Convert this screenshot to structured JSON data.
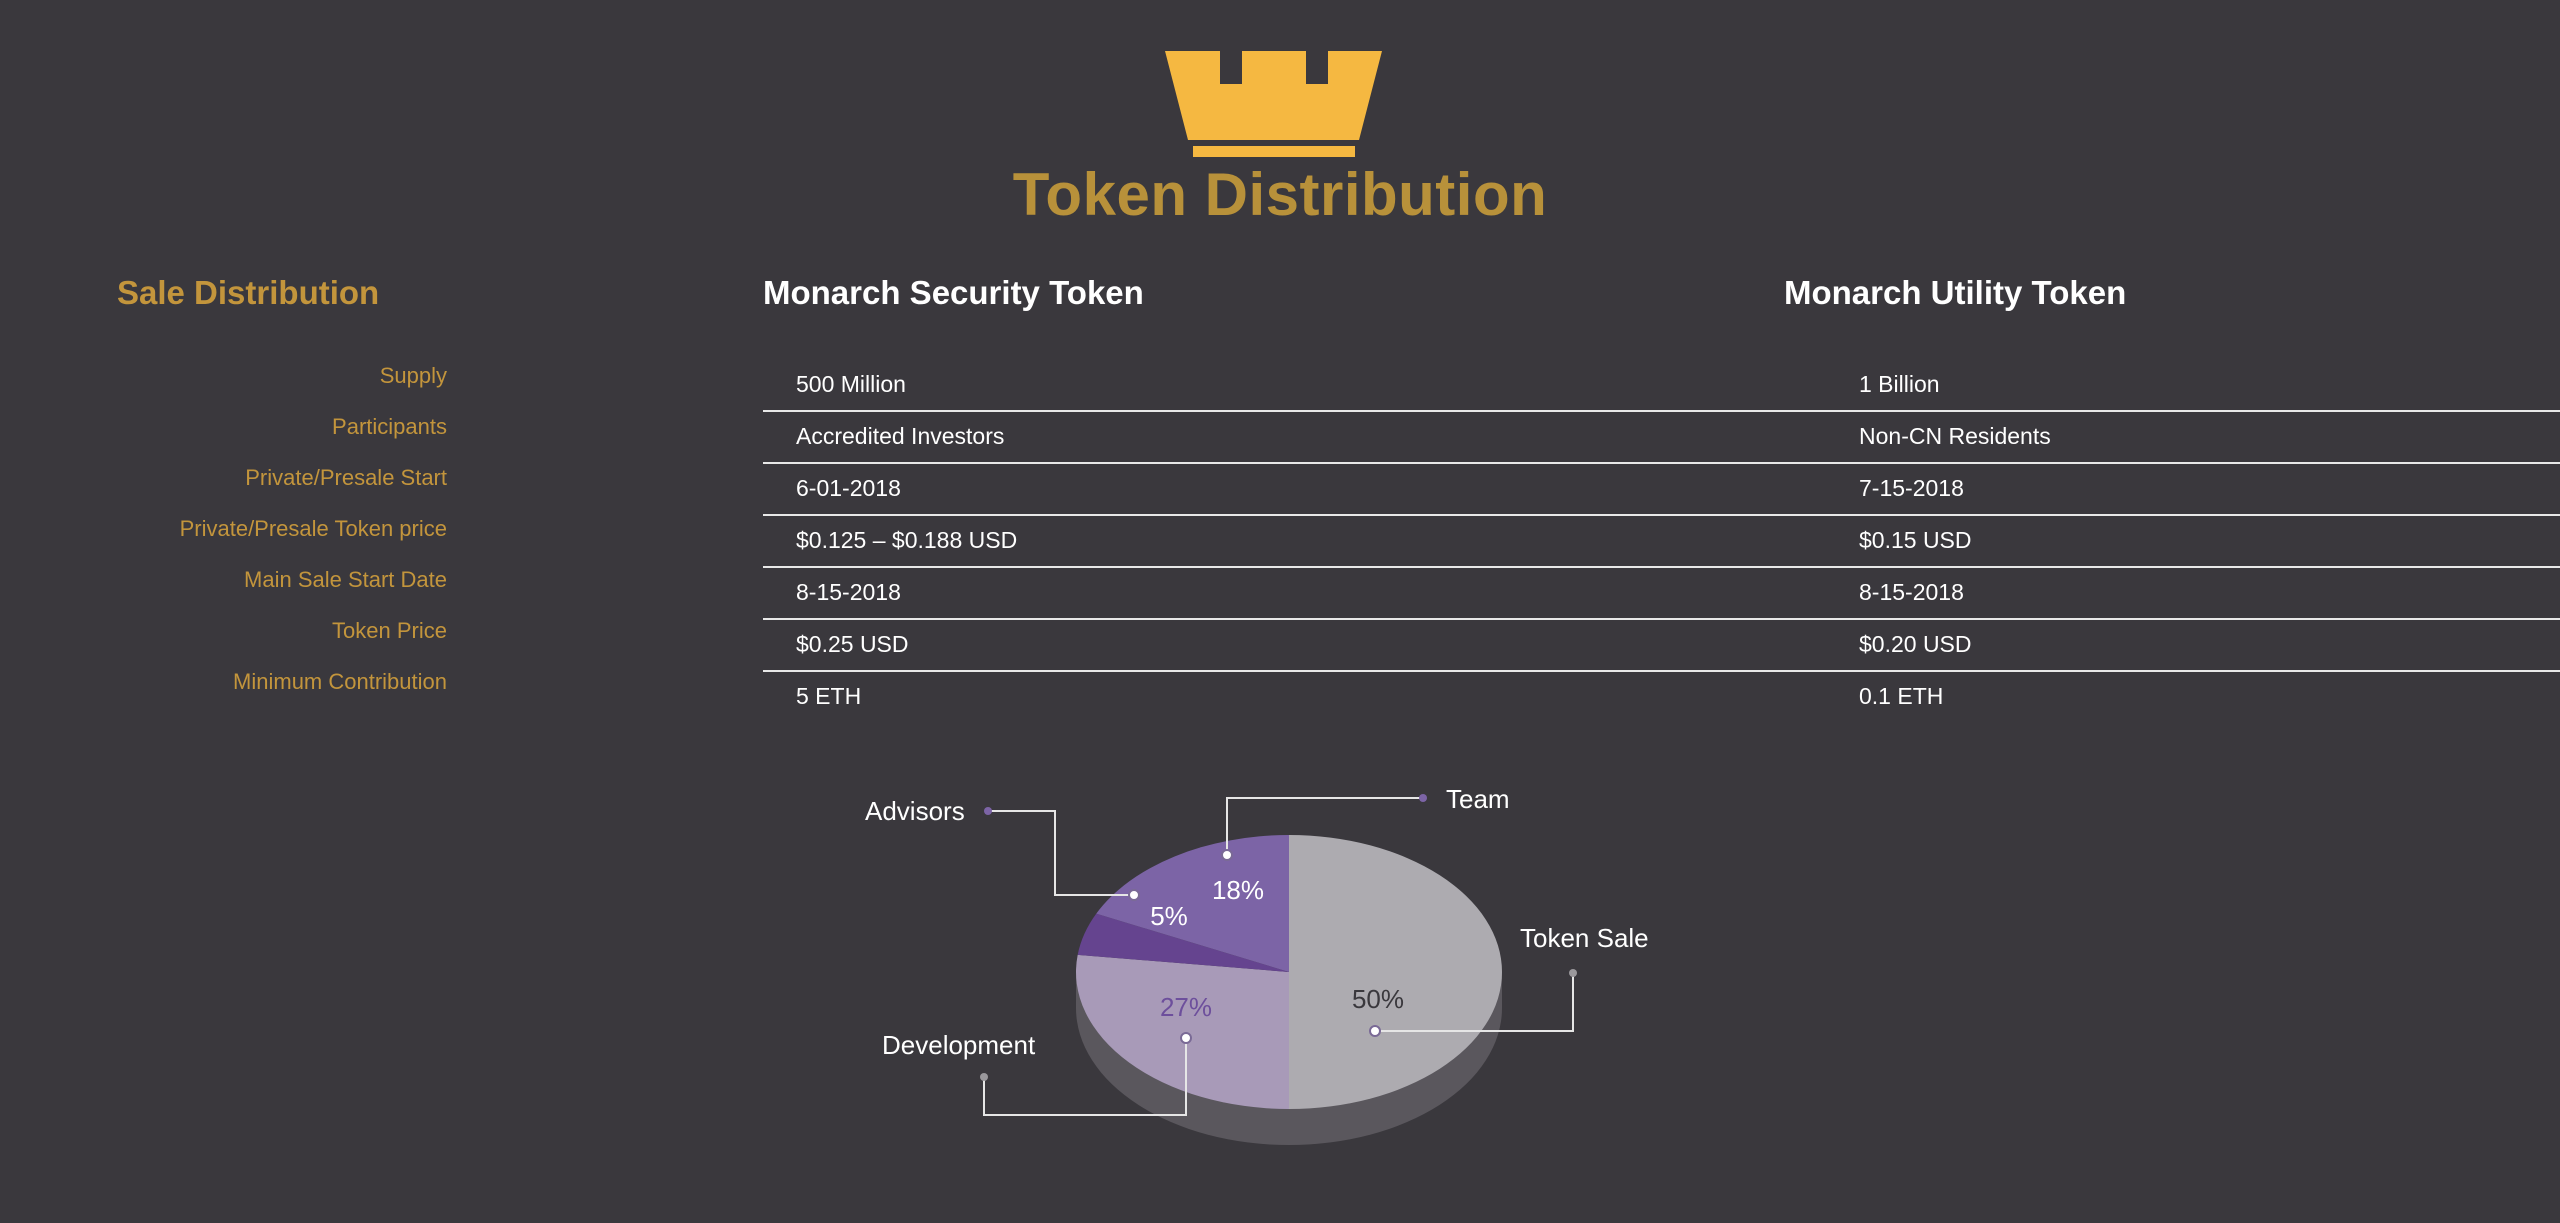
{
  "header": {
    "title": "Token Distribution",
    "logo_icon": "crown-icon"
  },
  "sale_distribution": {
    "title": "Sale Distribution",
    "rows": [
      "Supply",
      "Participants",
      "Private/Presale Start",
      "Private/Presale Token price",
      "Main Sale Start Date",
      "Token Price",
      "Minimum Contribution"
    ]
  },
  "security_token": {
    "title": "Monarch Security Token",
    "values": [
      "500 Million",
      "Accredited Investors",
      "6-01-2018",
      "$0.125 – $0.188 USD",
      "8-15-2018",
      "$0.25 USD",
      "5 ETH"
    ]
  },
  "utility_token": {
    "title": "Monarch Utility Token",
    "values": [
      "1 Billion",
      "Non-CN Residents",
      "7-15-2018",
      "$0.15 USD",
      "8-15-2018",
      "$0.20 USD",
      "0.1 ETH"
    ]
  },
  "colors": {
    "background": "#3a383d",
    "gold": "#c3953c",
    "crown": "#f5b841"
  },
  "chart_data": {
    "type": "pie",
    "slices": [
      {
        "name": "Token Sale",
        "value": 50,
        "label": "50%",
        "color": "#adabb0"
      },
      {
        "name": "Development",
        "value": 27,
        "label": "27%",
        "color": "#a89ab8"
      },
      {
        "name": "Advisors",
        "value": 5,
        "label": "5%",
        "color": "#65448f"
      },
      {
        "name": "Team",
        "value": 18,
        "label": "18%",
        "color": "#7c64a6"
      }
    ]
  }
}
